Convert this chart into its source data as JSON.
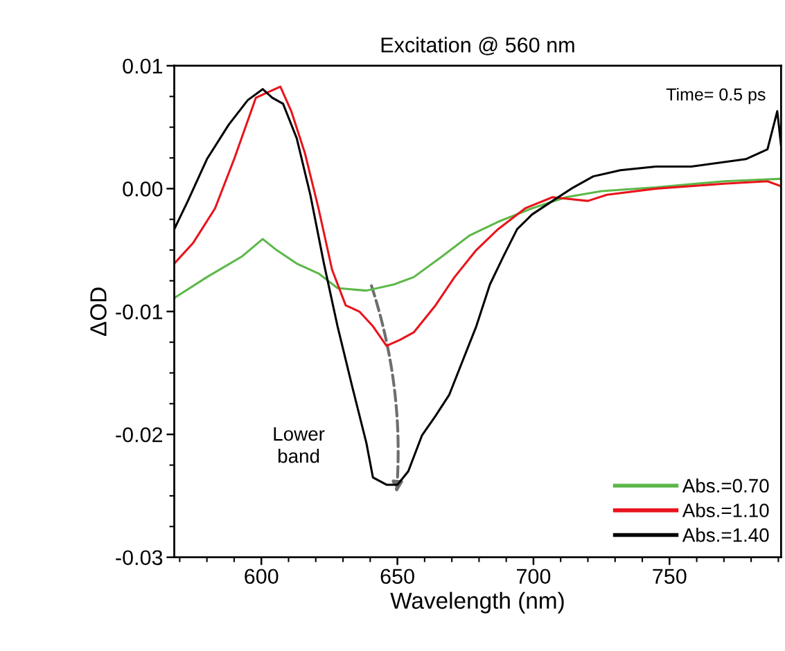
{
  "chart_data": {
    "type": "line",
    "title": "Excitation @ 560 nm",
    "xlabel": "Wavelength (nm)",
    "ylabel": "ΔOD",
    "xlim": [
      568,
      791
    ],
    "ylim": [
      -0.03,
      0.01
    ],
    "xticks": [
      600,
      650,
      700,
      750
    ],
    "yticks": [
      {
        "value": 0.01,
        "label": "0.01"
      },
      {
        "value": 0,
        "label": "0.00"
      },
      {
        "value": -0.01,
        "label": "-0.01"
      },
      {
        "value": -0.02,
        "label": "-0.02"
      },
      {
        "value": -0.03,
        "label": "-0.03"
      }
    ],
    "grid": false,
    "legend": "bottom right",
    "marker": "none",
    "line_style": "solid",
    "annotations": [
      "Time= 0.5 ps",
      "Lower\nband"
    ],
    "series": [
      {
        "name": "Abs.=0.70",
        "color": "#5cb848",
        "x": [
          568,
          580,
          593,
          600.5,
          605.6,
          613,
          621,
          628,
          638.6,
          648.7,
          656,
          666.5,
          676.6,
          687,
          699.5,
          712,
          725,
          745,
          770,
          791
        ],
        "values": [
          -0.0089,
          -0.0072,
          -0.0055,
          -0.0041,
          -0.005,
          -0.0061,
          -0.0069,
          -0.0081,
          -0.0083,
          -0.0078,
          -0.0072,
          -0.0055,
          -0.0038,
          -0.0027,
          -0.0016,
          -0.0007,
          -0.0002,
          0.0001,
          0.0006,
          0.0008
        ]
      },
      {
        "name": "Abs.=1.10",
        "color": "#e8141c",
        "x": [
          568,
          575,
          583,
          590,
          598,
          604,
          607,
          611,
          616,
          621,
          626,
          631,
          636,
          641,
          646,
          651,
          656,
          664,
          671,
          679,
          687,
          697,
          707,
          720,
          727,
          745,
          770,
          786,
          791
        ],
        "values": [
          -0.0061,
          -0.0044,
          -0.0016,
          0.0024,
          0.0074,
          0.008,
          0.0083,
          0.0063,
          0.0029,
          -0.0016,
          -0.0066,
          -0.0095,
          -0.01,
          -0.0112,
          -0.0128,
          -0.0123,
          -0.0117,
          -0.0095,
          -0.0072,
          -0.005,
          -0.0033,
          -0.0016,
          -0.0007,
          -0.001,
          -0.0005,
          0,
          0.0004,
          0.0006,
          0.0002
        ]
      },
      {
        "name": "Abs.=1.40",
        "color": "#000000",
        "x": [
          568,
          573,
          580,
          588,
          595,
          600.5,
          604,
          608,
          613,
          618,
          623,
          628,
          633.5,
          638.6,
          641,
          646,
          650,
          654,
          659,
          664,
          669,
          674,
          679,
          684,
          689,
          694,
          699.5,
          707,
          714.7,
          722,
          732,
          745,
          758,
          778,
          786,
          789.6,
          791
        ],
        "values": [
          -0.0033,
          -0.001,
          0.0024,
          0.0052,
          0.0072,
          0.0081,
          0.0074,
          0.0069,
          0.0041,
          -0.0005,
          -0.0061,
          -0.0112,
          -0.0162,
          -0.0207,
          -0.0235,
          -0.0241,
          -0.0241,
          -0.023,
          -0.0201,
          -0.0185,
          -0.0168,
          -0.014,
          -0.0112,
          -0.0078,
          -0.0055,
          -0.0033,
          -0.0021,
          -0.001,
          0.0001,
          0.001,
          0.0015,
          0.0018,
          0.0018,
          0.0024,
          0.0032,
          0.0063,
          0.0035
        ]
      }
    ]
  }
}
